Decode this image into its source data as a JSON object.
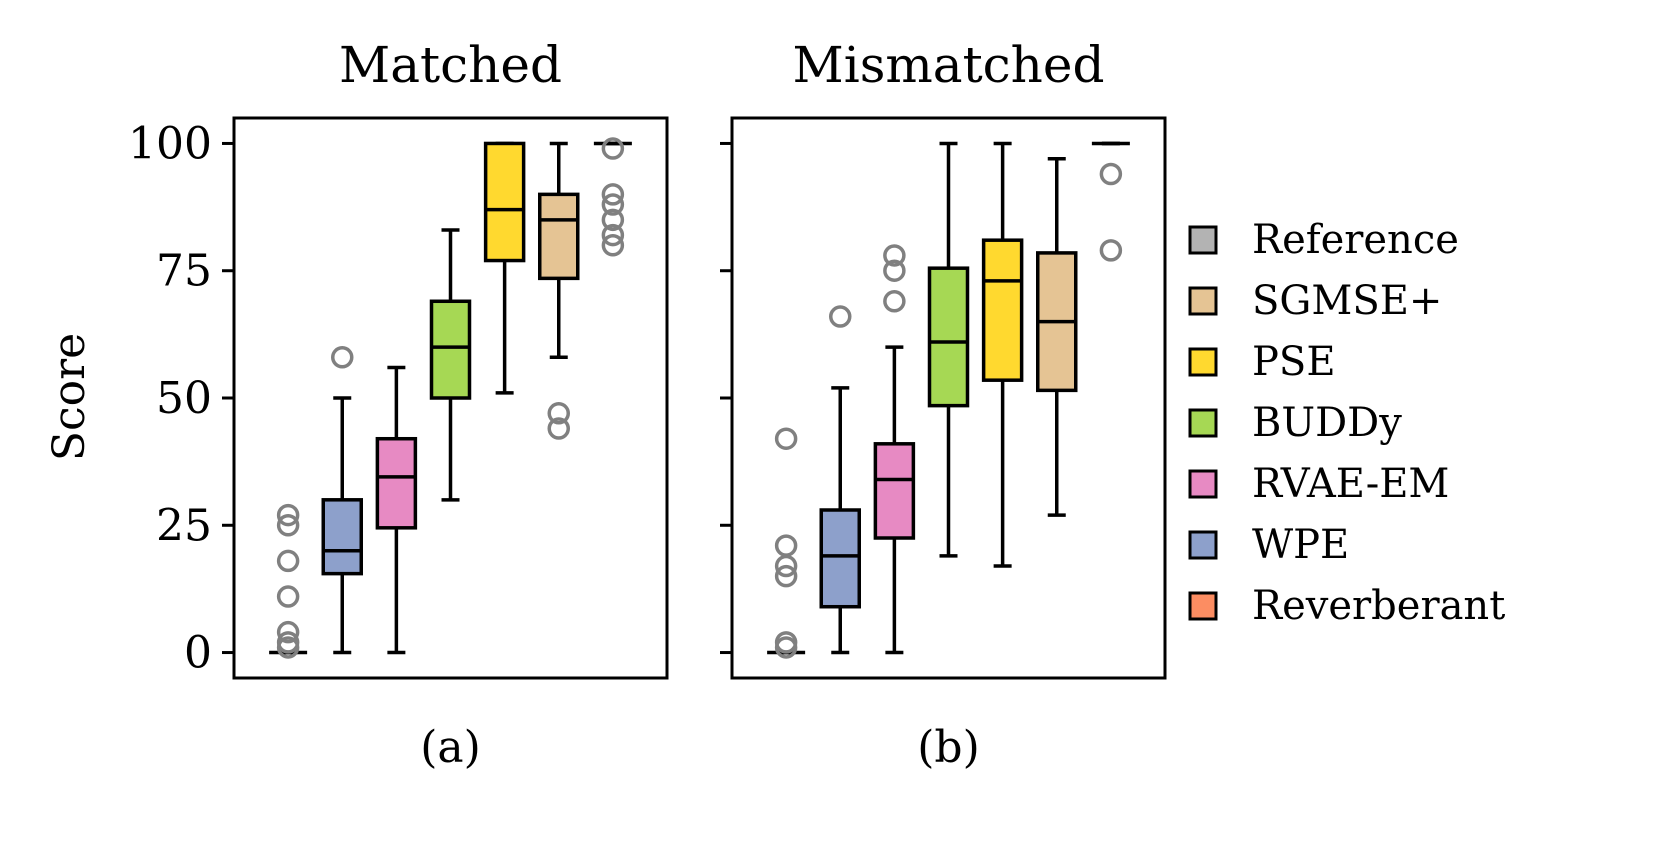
{
  "chart_data": {
    "type": "box",
    "ylabel": "Score",
    "ylim": [
      -5,
      105
    ],
    "yticks": [
      0,
      25,
      50,
      75,
      100
    ],
    "legend_position": "right",
    "methods": [
      {
        "name": "Reverberant",
        "color": "#fc8d62"
      },
      {
        "name": "WPE",
        "color": "#8da0cb"
      },
      {
        "name": "RVAE-EM",
        "color": "#e78ac3"
      },
      {
        "name": "BUDDy",
        "color": "#a6d854"
      },
      {
        "name": "PSE",
        "color": "#ffd92f"
      },
      {
        "name": "SGMSE+",
        "color": "#e5c494"
      },
      {
        "name": "Reference",
        "color": "#b3b3b3"
      }
    ],
    "legend_order": [
      "Reference",
      "SGMSE+",
      "PSE",
      "BUDDy",
      "RVAE-EM",
      "WPE",
      "Reverberant"
    ],
    "panels": [
      {
        "title": "Matched",
        "sublabel": "(a)",
        "boxes": [
          {
            "method": "Reverberant",
            "whislo": 0,
            "q1": 0,
            "median": 0,
            "q3": 0,
            "whishi": 0,
            "fliers": [
              1,
              2,
              4,
              11,
              18,
              25,
              27
            ]
          },
          {
            "method": "WPE",
            "whislo": 0,
            "q1": 15.5,
            "median": 20,
            "q3": 30,
            "whishi": 50,
            "fliers": [
              58
            ]
          },
          {
            "method": "RVAE-EM",
            "whislo": 0,
            "q1": 24.5,
            "median": 34.5,
            "q3": 42,
            "whishi": 56,
            "fliers": []
          },
          {
            "method": "BUDDy",
            "whislo": 30,
            "q1": 50,
            "median": 60,
            "q3": 69,
            "whishi": 83,
            "fliers": []
          },
          {
            "method": "PSE",
            "whislo": 51,
            "q1": 77,
            "median": 87,
            "q3": 100,
            "whishi": 100,
            "fliers": []
          },
          {
            "method": "SGMSE+",
            "whislo": 58,
            "q1": 73.5,
            "median": 85,
            "q3": 90,
            "whishi": 100,
            "fliers": [
              44,
              47
            ]
          },
          {
            "method": "Reference",
            "whislo": 100,
            "q1": 100,
            "median": 100,
            "q3": 100,
            "whishi": 100,
            "fliers": [
              80,
              82,
              85,
              88,
              90,
              99
            ]
          }
        ]
      },
      {
        "title": "Mismatched",
        "sublabel": "(b)",
        "boxes": [
          {
            "method": "Reverberant",
            "whislo": 0,
            "q1": 0,
            "median": 0,
            "q3": 0,
            "whishi": 0,
            "fliers": [
              1,
              2,
              15,
              17,
              21,
              42
            ]
          },
          {
            "method": "WPE",
            "whislo": 0,
            "q1": 9,
            "median": 19,
            "q3": 28,
            "whishi": 52,
            "fliers": [
              66
            ]
          },
          {
            "method": "RVAE-EM",
            "whislo": 0,
            "q1": 22.5,
            "median": 34,
            "q3": 41,
            "whishi": 60,
            "fliers": [
              69,
              75,
              78
            ]
          },
          {
            "method": "BUDDy",
            "whislo": 19,
            "q1": 48.5,
            "median": 61,
            "q3": 75.5,
            "whishi": 100,
            "fliers": []
          },
          {
            "method": "PSE",
            "whislo": 17,
            "q1": 53.5,
            "median": 73,
            "q3": 81,
            "whishi": 100,
            "fliers": []
          },
          {
            "method": "SGMSE+",
            "whislo": 27,
            "q1": 51.5,
            "median": 65,
            "q3": 78.5,
            "whishi": 97,
            "fliers": []
          },
          {
            "method": "Reference",
            "whislo": 100,
            "q1": 100,
            "median": 100,
            "q3": 100,
            "whishi": 100,
            "fliers": [
              79,
              94
            ]
          }
        ]
      }
    ]
  }
}
